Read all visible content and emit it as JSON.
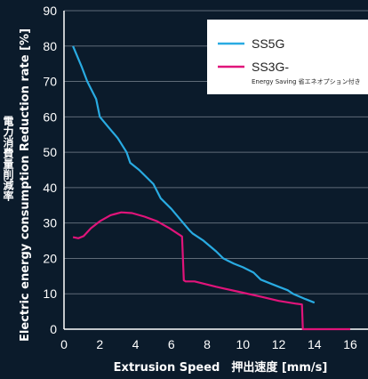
{
  "chart_data": {
    "type": "line",
    "ylabel": "Electric energy consumption Reduction rate [%]",
    "ylabel_jp": "電力消費量削減率",
    "xlabel": "Extrusion Speed　押出速度 [mm/s]",
    "xlim": [
      0,
      16
    ],
    "ylim": [
      0,
      90
    ],
    "x_ticks": [
      0,
      2,
      4,
      6,
      8,
      10,
      12,
      14,
      16
    ],
    "y_ticks": [
      0,
      10,
      20,
      30,
      40,
      50,
      60,
      70,
      80,
      90
    ],
    "grid": "horizontal",
    "legend_position": "top-right",
    "series": [
      {
        "name": "SS5G",
        "color": "#29abe2",
        "points": [
          [
            0.5,
            80
          ],
          [
            1,
            74
          ],
          [
            1.3,
            70
          ],
          [
            1.8,
            65
          ],
          [
            2,
            60
          ],
          [
            2.5,
            57
          ],
          [
            3,
            54
          ],
          [
            3.5,
            50
          ],
          [
            3.7,
            47
          ],
          [
            4.2,
            45
          ],
          [
            5,
            41
          ],
          [
            5.4,
            37
          ],
          [
            6,
            34
          ],
          [
            6.5,
            31
          ],
          [
            7,
            28
          ],
          [
            7.2,
            27
          ],
          [
            7.8,
            25
          ],
          [
            8.5,
            22
          ],
          [
            8.9,
            20
          ],
          [
            9.5,
            18.5
          ],
          [
            10,
            17.5
          ],
          [
            10.6,
            16
          ],
          [
            11,
            14
          ],
          [
            11.5,
            13
          ],
          [
            12,
            12
          ],
          [
            12.5,
            11
          ],
          [
            12.8,
            10
          ],
          [
            13.5,
            8.5
          ],
          [
            14,
            7.5
          ]
        ]
      },
      {
        "name": "SS3G-",
        "subtitle": "Energy Saving 省エネオプション付き",
        "color": "#e0147a",
        "points": [
          [
            0.5,
            26
          ],
          [
            0.8,
            25.7
          ],
          [
            1.1,
            26.3
          ],
          [
            1.5,
            28.5
          ],
          [
            2,
            30.5
          ],
          [
            2.6,
            32.2
          ],
          [
            3.2,
            33
          ],
          [
            3.8,
            32.8
          ],
          [
            4.5,
            31.8
          ],
          [
            5.2,
            30.5
          ],
          [
            5.9,
            28.5
          ],
          [
            6.6,
            26.2
          ],
          [
            6.65,
            20
          ],
          [
            6.7,
            13.8
          ],
          [
            6.8,
            13.5
          ],
          [
            7.3,
            13.5
          ],
          [
            8.5,
            12
          ],
          [
            10,
            10.3
          ],
          [
            11,
            9.2
          ],
          [
            12,
            8
          ],
          [
            13,
            7.2
          ],
          [
            13.3,
            7
          ],
          [
            13.35,
            0
          ],
          [
            16,
            0
          ]
        ]
      }
    ]
  }
}
